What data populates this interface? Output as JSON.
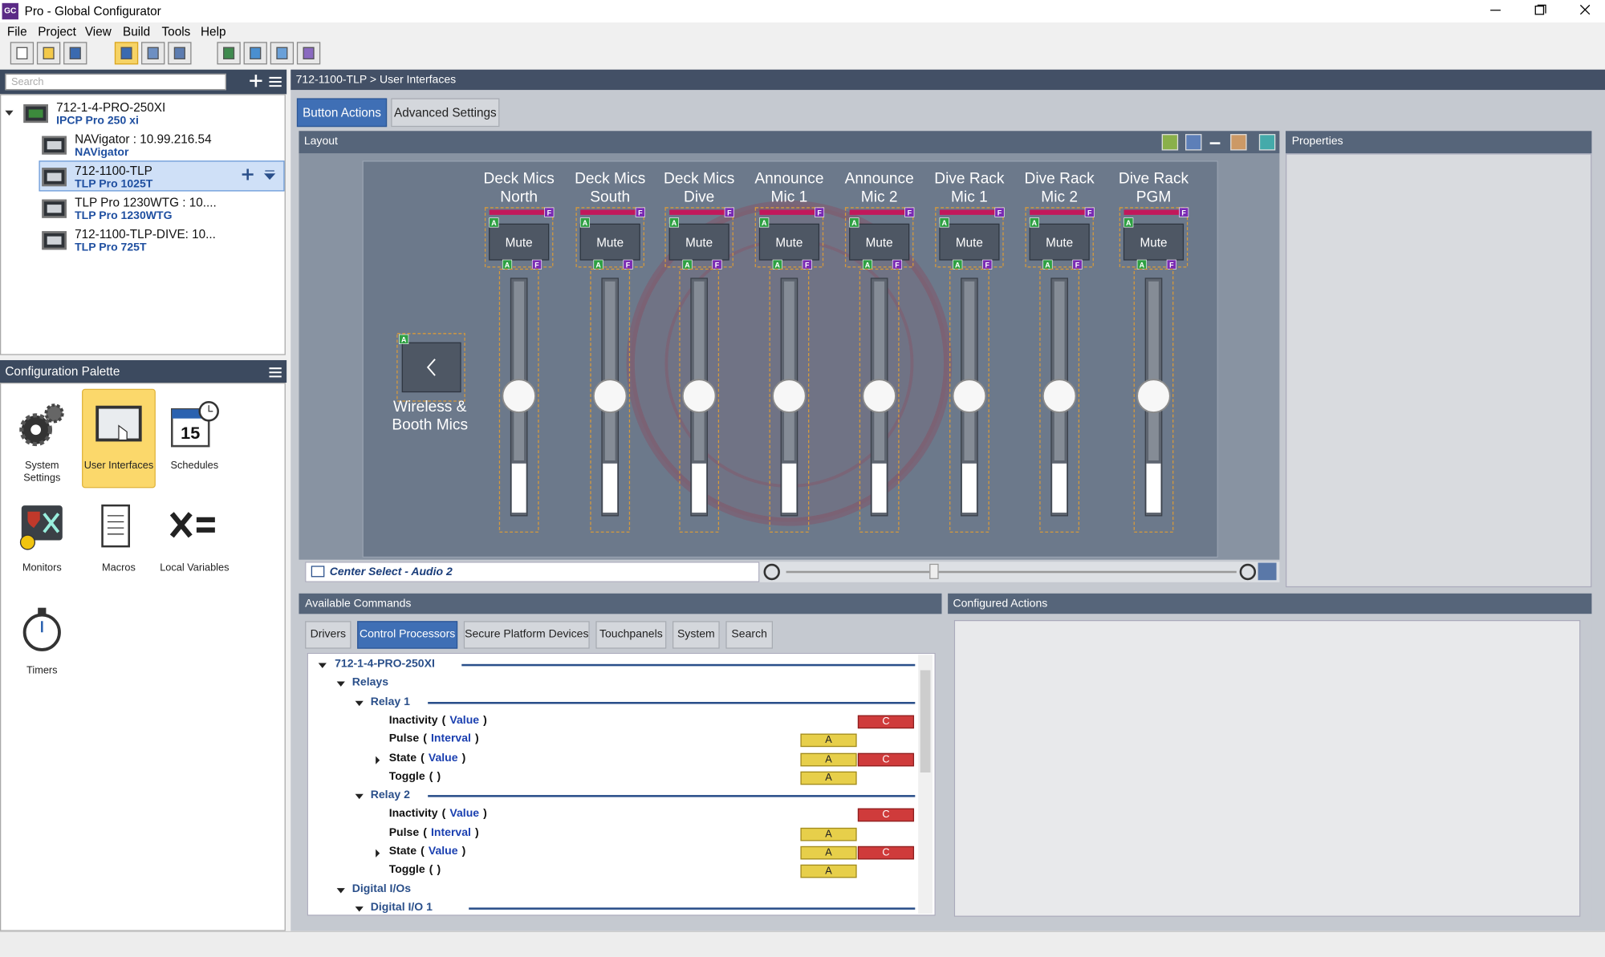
{
  "window": {
    "icon": "GC",
    "title": "Pro - Global Configurator"
  },
  "menu": [
    "File",
    "Project",
    "View",
    "Build",
    "Tools",
    "Help"
  ],
  "search_placeholder": "Search",
  "tree": {
    "selected_index": 2,
    "nodes": [
      {
        "name": "712-1-4-PRO-250XI",
        "model": "IPCP Pro 250 xi"
      },
      {
        "name": "NAVigator : 10.99.216.54",
        "model": "NAVigator"
      },
      {
        "name": "712-1100-TLP",
        "model": "TLP Pro 1025T"
      },
      {
        "name": "TLP Pro 1230WTG : 10....",
        "model": "TLP Pro 1230WTG"
      },
      {
        "name": "712-1100-TLP-DIVE: 10...",
        "model": "TLP Pro 725T"
      }
    ]
  },
  "palette": {
    "title": "Configuration Palette",
    "selected_index": 1,
    "calendar_day": "15",
    "items": [
      "System Settings",
      "User Interfaces",
      "Schedules",
      "Monitors",
      "Macros",
      "Local Variables",
      "Timers"
    ]
  },
  "breadcrumb": "712-1100-TLP > User Interfaces",
  "tabs": {
    "active_index": 0,
    "items": [
      "Button Actions",
      "Advanced Settings"
    ]
  },
  "layout": {
    "title": "Layout",
    "channels": [
      "Deck Mics North",
      "Deck Mics South",
      "Deck Mics Dive",
      "Announce Mic 1",
      "Announce Mic 2",
      "Dive Rack Mic 1",
      "Dive Rack Mic 2",
      "Dive Rack PGM"
    ],
    "mute": "Mute",
    "markers": [
      "A",
      "F"
    ],
    "page_button": "Wireless & Booth Mics",
    "page_select": "Center Select - Audio 2"
  },
  "properties": {
    "title": "Properties"
  },
  "commands": {
    "title": "Available Commands",
    "active_tab": 1,
    "tabs": [
      "Drivers",
      "Control Processors",
      "Secure Platform Devices",
      "Touchpanels",
      "System",
      "Search"
    ],
    "brackets": [
      "(",
      ")"
    ],
    "rows": [
      {
        "label": "712-1-4-PRO-250XI",
        "level": 0,
        "arrow": "open"
      },
      {
        "label": "Relays",
        "level": 1,
        "arrow": "open"
      },
      {
        "label": "Relay 1",
        "level": 2,
        "arrow": "open"
      },
      {
        "label": "Inactivity",
        "level": 3,
        "param": "Value",
        "buttons": [
          "C"
        ]
      },
      {
        "label": "Pulse",
        "level": 3,
        "param": "Interval",
        "buttons": [
          "A"
        ]
      },
      {
        "label": "State",
        "level": 3,
        "param": "Value",
        "arrow": "closed",
        "buttons": [
          "A",
          "C"
        ]
      },
      {
        "label": "Toggle",
        "level": 3,
        "buttons": [
          "A"
        ]
      },
      {
        "label": "Relay 2",
        "level": 2,
        "arrow": "open"
      },
      {
        "label": "Inactivity",
        "level": 3,
        "param": "Value",
        "buttons": [
          "C"
        ]
      },
      {
        "label": "Pulse",
        "level": 3,
        "param": "Interval",
        "buttons": [
          "A"
        ]
      },
      {
        "label": "State",
        "level": 3,
        "param": "Value",
        "arrow": "closed",
        "buttons": [
          "A",
          "C"
        ]
      },
      {
        "label": "Toggle",
        "level": 3,
        "buttons": [
          "A"
        ]
      },
      {
        "label": "Digital I/Os",
        "level": 1,
        "arrow": "open"
      },
      {
        "label": "Digital I/O 1",
        "level": 2,
        "arrow": "open"
      }
    ]
  },
  "configured_actions": {
    "title": "Configured Actions"
  }
}
